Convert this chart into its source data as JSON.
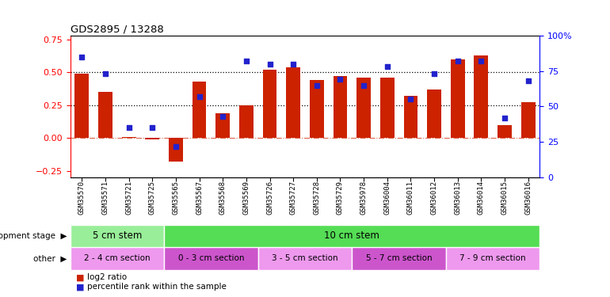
{
  "title": "GDS2895 / 13288",
  "samples": [
    "GSM35570",
    "GSM35571",
    "GSM35721",
    "GSM35725",
    "GSM35565",
    "GSM35567",
    "GSM35568",
    "GSM35569",
    "GSM35726",
    "GSM35727",
    "GSM35728",
    "GSM35729",
    "GSM35978",
    "GSM36004",
    "GSM36011",
    "GSM36012",
    "GSM36013",
    "GSM36014",
    "GSM36015",
    "GSM36016"
  ],
  "log2_ratio": [
    0.49,
    0.35,
    0.01,
    -0.01,
    -0.18,
    0.43,
    0.19,
    0.25,
    0.52,
    0.54,
    0.44,
    0.47,
    0.46,
    0.46,
    0.32,
    0.37,
    0.6,
    0.63,
    0.1,
    0.27
  ],
  "pct_rank": [
    85,
    73,
    35,
    35,
    22,
    57,
    43,
    82,
    80,
    80,
    65,
    69,
    65,
    78,
    55,
    73,
    82,
    82,
    42,
    68
  ],
  "bar_color": "#cc2200",
  "dot_color": "#2222cc",
  "hline1": 0.5,
  "hline2": 0.25,
  "ylim_left": [
    -0.3,
    0.78
  ],
  "ylim_right": [
    0,
    100
  ],
  "yticks_left": [
    -0.25,
    0.0,
    0.25,
    0.5,
    0.75
  ],
  "yticks_right": [
    0,
    25,
    50,
    75,
    100
  ],
  "dev_stage_groups": [
    {
      "label": "5 cm stem",
      "start": 0,
      "end": 4,
      "color": "#99ee99"
    },
    {
      "label": "10 cm stem",
      "start": 4,
      "end": 20,
      "color": "#55dd55"
    }
  ],
  "other_groups": [
    {
      "label": "2 - 4 cm section",
      "start": 0,
      "end": 4,
      "color": "#ee99ee"
    },
    {
      "label": "0 - 3 cm section",
      "start": 4,
      "end": 8,
      "color": "#cc55cc"
    },
    {
      "label": "3 - 5 cm section",
      "start": 8,
      "end": 12,
      "color": "#ee99ee"
    },
    {
      "label": "5 - 7 cm section",
      "start": 12,
      "end": 16,
      "color": "#cc55cc"
    },
    {
      "label": "7 - 9 cm section",
      "start": 16,
      "end": 20,
      "color": "#ee99ee"
    }
  ],
  "legend_red": "log2 ratio",
  "legend_blue": "percentile rank within the sample",
  "bg_color": "#ffffff",
  "xlabel_bg": "#cccccc"
}
